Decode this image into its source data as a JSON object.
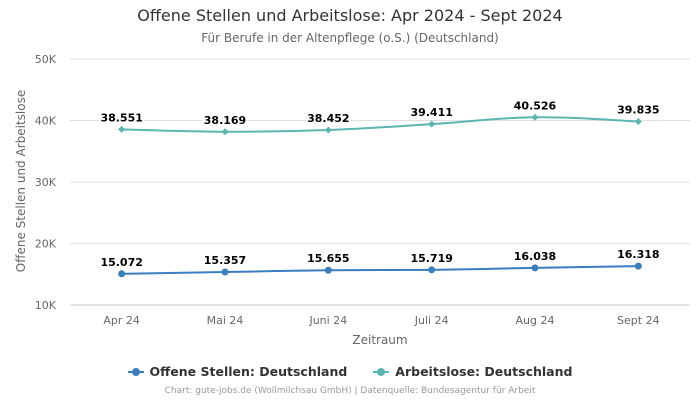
{
  "chart_data": {
    "type": "line",
    "title": "Offene Stellen und Arbeitslose: Apr 2024 - Sept 2024",
    "subtitle": "Für Berufe in der Altenpflege (o.S.) (Deutschland)",
    "xlabel": "Zeitraum",
    "ylabel": "Offene Stellen und Arbeitslose",
    "categories": [
      "Apr 24",
      "Mai 24",
      "Juni 24",
      "Juli 24",
      "Aug 24",
      "Sept 24"
    ],
    "ylim": [
      10000,
      50000
    ],
    "yticks": [
      {
        "value": 10000,
        "label": "10K"
      },
      {
        "value": 20000,
        "label": "20K"
      },
      {
        "value": 30000,
        "label": "30K"
      },
      {
        "value": 40000,
        "label": "40K"
      },
      {
        "value": 50000,
        "label": "50K"
      }
    ],
    "grid": true,
    "legend_position": "bottom",
    "series": [
      {
        "name": "Offene Stellen: Deutschland",
        "color": "#3a7ebf",
        "marker": "circle",
        "values": [
          15072,
          15357,
          15655,
          15719,
          16038,
          16318
        ],
        "labels": [
          "15.072",
          "15.357",
          "15.655",
          "15.719",
          "16.038",
          "16.318"
        ]
      },
      {
        "name": "Arbeitslose: Deutschland",
        "color": "#5bb5b0",
        "marker": "diamond",
        "values": [
          38551,
          38169,
          38452,
          39411,
          40526,
          39835
        ],
        "labels": [
          "38.551",
          "38.169",
          "38.452",
          "39.411",
          "40.526",
          "39.835"
        ]
      }
    ]
  },
  "credits": "Chart: gute-jobs.de (Wollmilchsau GmbH) | Datenquelle: Bundesagentur für Arbeit"
}
